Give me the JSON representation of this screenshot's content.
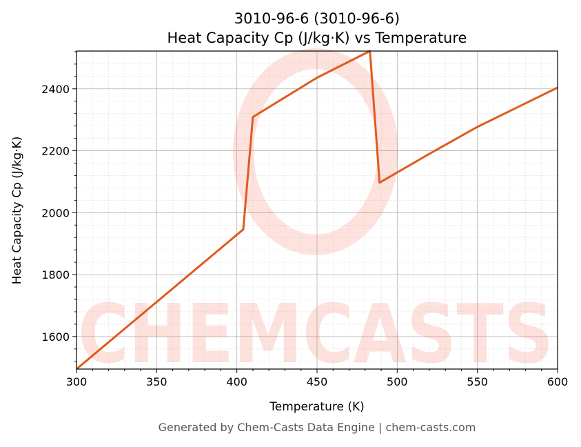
{
  "chart_data": {
    "type": "line",
    "title_line1": "3010-96-6 (3010-96-6)",
    "title_line2": "Heat Capacity Cp (J/kg·K) vs Temperature",
    "xlabel": "Temperature (K)",
    "ylabel": "Heat Capacity Cp (J/kg·K)",
    "xlim": [
      300,
      600
    ],
    "ylim": [
      1495,
      2522
    ],
    "xticks": [
      300,
      350,
      400,
      450,
      500,
      550,
      600
    ],
    "yticks": [
      1600,
      1800,
      2000,
      2200,
      2400
    ],
    "grid": true,
    "series": [
      {
        "name": "Cp",
        "color": "#e05a1e",
        "x": [
          300,
          404,
          410,
          450,
          483,
          489,
          520,
          550,
          600
        ],
        "y": [
          1495,
          1946,
          2309,
          2436,
          2522,
          2097,
          2190,
          2277,
          2404
        ]
      }
    ],
    "watermark": "CHEMCASTS",
    "footer": "Generated by Chem-Casts Data Engine | chem-casts.com"
  }
}
